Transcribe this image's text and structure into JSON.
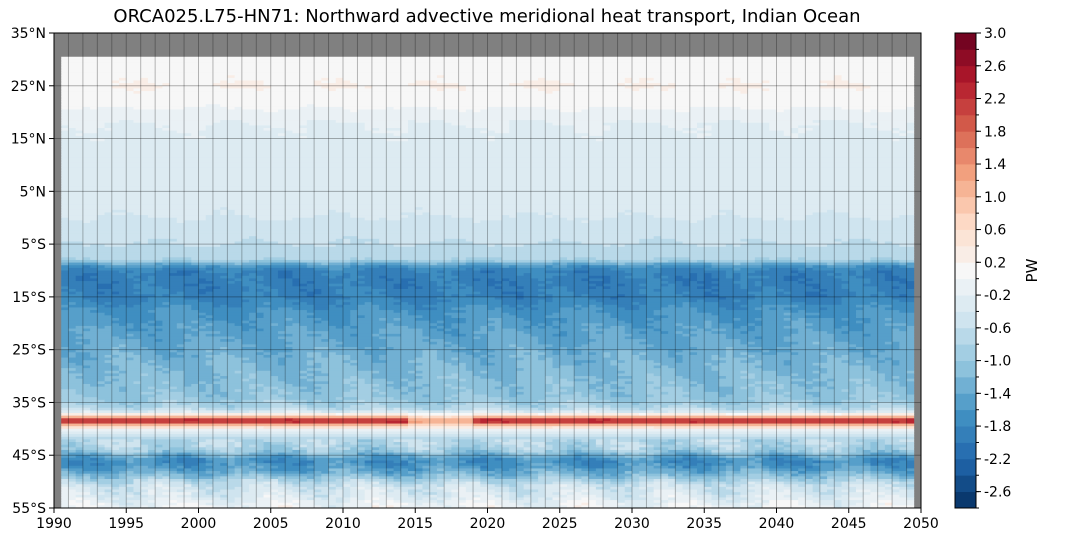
{
  "chart_data": {
    "type": "heatmap",
    "title": "ORCA025.L75-HN71: Northward advective meridional heat transport, Indian Ocean",
    "xlabel": "",
    "ylabel": "",
    "x_range": [
      1990,
      2050
    ],
    "y_range": [
      -55,
      35
    ],
    "x_ticks": [
      1990,
      1995,
      2000,
      2005,
      2010,
      2015,
      2020,
      2025,
      2030,
      2035,
      2040,
      2045,
      2050
    ],
    "x_tick_labels": [
      "1990",
      "1995",
      "2000",
      "2005",
      "2010",
      "2015",
      "2020",
      "2025",
      "2030",
      "2035",
      "2040",
      "2045",
      "2050"
    ],
    "y_ticks": [
      35,
      25,
      15,
      5,
      -5,
      -15,
      -25,
      -35,
      -45,
      -55
    ],
    "y_tick_labels": [
      "35°N",
      "25°N",
      "15°N",
      "5°N",
      "5°S",
      "15°S",
      "25°S",
      "35°S",
      "45°S",
      "55°S"
    ],
    "data_x_range": [
      1990.5,
      2049.5
    ],
    "data_y_range": [
      -55,
      30.5
    ],
    "grid": true,
    "grid_x_step_years": 1,
    "missing_color": "#808080",
    "colorbar": {
      "label": "PW",
      "range": [
        -2.8,
        3.0
      ],
      "ticks": [
        3.0,
        2.6,
        2.2,
        1.8,
        1.4,
        1.0,
        0.6,
        0.2,
        -0.2,
        -0.6,
        -1.0,
        -1.4,
        -1.8,
        -2.2,
        -2.6
      ],
      "tick_labels": [
        "3.0",
        "2.6",
        "2.2",
        "1.8",
        "1.4",
        "1.0",
        "0.6",
        "0.2",
        "-0.2",
        "-0.6",
        "-1.0",
        "-1.4",
        "-1.8",
        "-2.2",
        "-2.6"
      ],
      "colormap": "RdBu_r",
      "levels": 29
    },
    "latitude_profile": {
      "lat": [
        30.5,
        27,
        25,
        22,
        18,
        14,
        10,
        6,
        2,
        0,
        -2,
        -5,
        -8,
        -9,
        -10,
        -12,
        -15,
        -18,
        -22,
        -26,
        -30,
        -34,
        -36,
        -37,
        -37.8,
        -38.5,
        -39.2,
        -40,
        -41,
        -42,
        -43,
        -44,
        -45,
        -46,
        -47,
        -48,
        -49,
        -50,
        -51,
        -52,
        -53,
        -54,
        -55
      ],
      "mean_pw": [
        0.05,
        0.15,
        0.2,
        0.1,
        -0.2,
        -0.25,
        -0.25,
        -0.3,
        -0.35,
        -0.4,
        -0.5,
        -0.6,
        -0.8,
        -1.55,
        -1.85,
        -1.9,
        -1.85,
        -1.6,
        -1.45,
        -1.3,
        -1.15,
        -1.05,
        -0.8,
        -0.2,
        1.2,
        2.7,
        1.2,
        0.1,
        -0.5,
        -0.7,
        -0.75,
        -0.9,
        -1.3,
        -1.7,
        -1.6,
        -1.4,
        -1.1,
        -0.7,
        -0.45,
        -0.4,
        -0.3,
        -0.15,
        -0.05
      ]
    }
  }
}
